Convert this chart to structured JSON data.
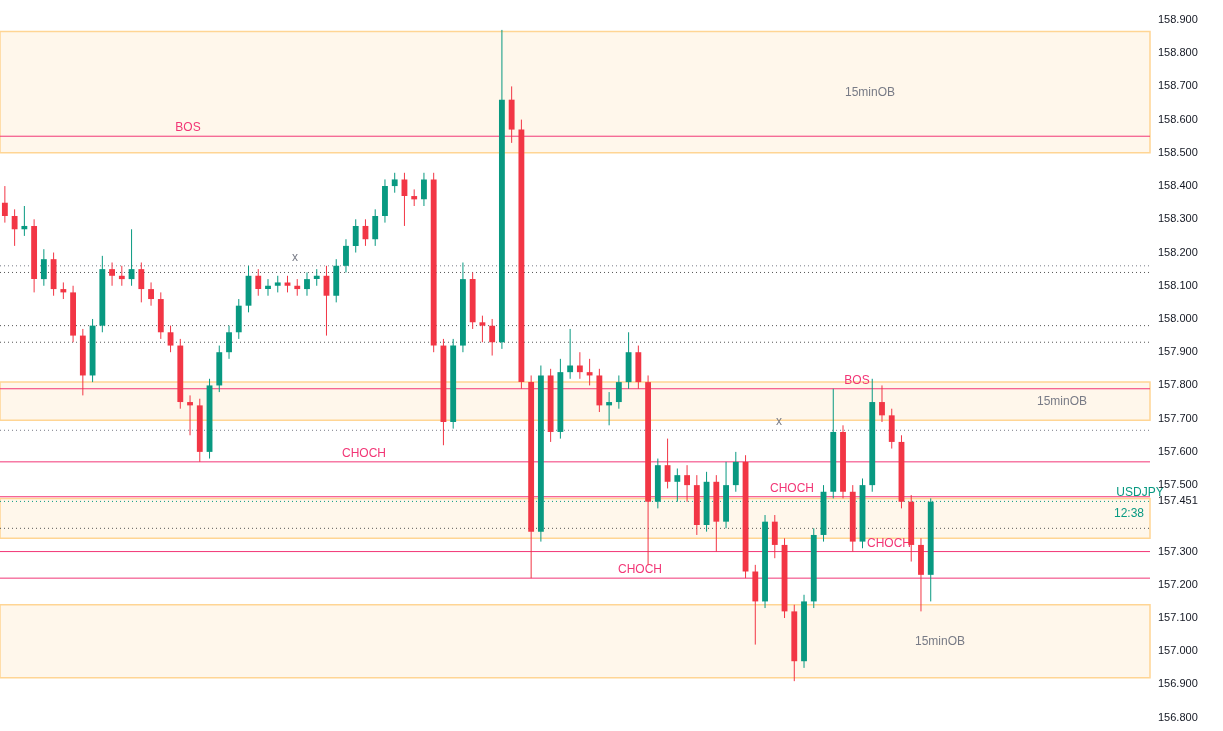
{
  "chart_data": {
    "type": "candlestick",
    "categories": [
      null,
      null,
      null,
      null,
      null,
      null,
      null,
      null,
      null,
      null,
      null,
      null,
      null,
      null,
      null,
      null,
      null,
      null,
      null,
      null,
      null,
      null,
      null,
      null,
      null,
      null,
      null,
      null,
      null,
      null,
      null,
      null,
      null,
      null,
      null,
      null,
      null,
      null,
      null,
      null,
      null,
      null,
      null,
      null,
      null,
      null,
      null,
      null,
      null,
      null,
      null,
      null,
      null,
      null,
      null,
      null,
      null,
      null,
      null,
      null,
      null,
      null,
      null,
      null,
      null,
      null,
      null,
      null,
      null,
      null,
      null,
      null,
      null,
      null,
      null,
      null,
      null,
      null,
      null,
      null,
      null,
      null,
      null,
      null,
      null,
      null,
      null,
      null,
      null,
      null,
      null,
      null,
      null,
      null,
      null,
      null,
      null,
      null,
      null,
      null,
      null,
      null,
      null,
      null,
      null,
      null,
      null,
      null,
      null,
      null,
      null,
      null,
      null,
      null,
      null,
      null,
      null,
      null
    ],
    "ohlc": [
      [
        158.35,
        158.4,
        158.29,
        158.31
      ],
      [
        158.31,
        158.33,
        158.22,
        158.27
      ],
      [
        158.27,
        158.34,
        158.25,
        158.28
      ],
      [
        158.28,
        158.3,
        158.08,
        158.12
      ],
      [
        158.12,
        158.21,
        158.1,
        158.18
      ],
      [
        158.18,
        158.2,
        158.07,
        158.09
      ],
      [
        158.09,
        158.11,
        158.06,
        158.08
      ],
      [
        158.08,
        158.1,
        157.93,
        157.95
      ],
      [
        157.95,
        157.97,
        157.77,
        157.83
      ],
      [
        157.83,
        158.0,
        157.81,
        157.98
      ],
      [
        157.98,
        158.19,
        157.96,
        158.15
      ],
      [
        158.15,
        158.17,
        158.1,
        158.13
      ],
      [
        158.13,
        158.16,
        158.1,
        158.12
      ],
      [
        158.12,
        158.27,
        158.1,
        158.15
      ],
      [
        158.15,
        158.17,
        158.05,
        158.09
      ],
      [
        158.09,
        158.11,
        158.04,
        158.06
      ],
      [
        158.06,
        158.08,
        157.94,
        157.96
      ],
      [
        157.96,
        157.98,
        157.9,
        157.92
      ],
      [
        157.92,
        157.94,
        157.73,
        157.75
      ],
      [
        157.75,
        157.77,
        157.65,
        157.74
      ],
      [
        157.74,
        157.76,
        157.57,
        157.6
      ],
      [
        157.6,
        157.82,
        157.58,
        157.8
      ],
      [
        157.8,
        157.92,
        157.78,
        157.9
      ],
      [
        157.9,
        157.98,
        157.88,
        157.96
      ],
      [
        157.96,
        158.06,
        157.94,
        158.04
      ],
      [
        158.04,
        158.16,
        158.02,
        158.13
      ],
      [
        158.13,
        158.15,
        158.07,
        158.09
      ],
      [
        158.09,
        158.12,
        158.07,
        158.1
      ],
      [
        158.1,
        158.13,
        158.08,
        158.11
      ],
      [
        158.11,
        158.13,
        158.08,
        158.1
      ],
      [
        158.1,
        158.12,
        158.07,
        158.09
      ],
      [
        158.09,
        158.14,
        158.07,
        158.12
      ],
      [
        158.12,
        158.15,
        158.1,
        158.13
      ],
      [
        158.13,
        158.16,
        157.95,
        158.07
      ],
      [
        158.07,
        158.18,
        158.05,
        158.16
      ],
      [
        158.16,
        158.24,
        158.14,
        158.22
      ],
      [
        158.22,
        158.3,
        158.2,
        158.28
      ],
      [
        158.28,
        158.3,
        158.22,
        158.24
      ],
      [
        158.24,
        158.33,
        158.22,
        158.31
      ],
      [
        158.31,
        158.42,
        158.29,
        158.4
      ],
      [
        158.4,
        158.44,
        158.38,
        158.42
      ],
      [
        158.42,
        158.44,
        158.28,
        158.37
      ],
      [
        158.37,
        158.39,
        158.34,
        158.36
      ],
      [
        158.36,
        158.44,
        158.34,
        158.42
      ],
      [
        158.42,
        158.44,
        157.9,
        157.92
      ],
      [
        157.92,
        157.94,
        157.62,
        157.69
      ],
      [
        157.69,
        157.94,
        157.67,
        157.92
      ],
      [
        157.92,
        158.17,
        157.9,
        158.12
      ],
      [
        158.12,
        158.14,
        157.97,
        157.99
      ],
      [
        157.99,
        158.01,
        157.93,
        157.98
      ],
      [
        157.98,
        158.0,
        157.89,
        157.93
      ],
      [
        157.93,
        158.87,
        157.91,
        158.66
      ],
      [
        158.66,
        158.7,
        158.53,
        158.57
      ],
      [
        158.57,
        158.6,
        157.79,
        157.81
      ],
      [
        157.81,
        157.83,
        157.22,
        157.36
      ],
      [
        157.36,
        157.86,
        157.33,
        157.83
      ],
      [
        157.83,
        157.85,
        157.63,
        157.66
      ],
      [
        157.66,
        157.88,
        157.64,
        157.84
      ],
      [
        157.84,
        157.97,
        157.82,
        157.86
      ],
      [
        157.86,
        157.9,
        157.82,
        157.84
      ],
      [
        157.84,
        157.88,
        157.8,
        157.83
      ],
      [
        157.83,
        157.85,
        157.72,
        157.74
      ],
      [
        157.74,
        157.78,
        157.68,
        157.75
      ],
      [
        157.75,
        157.83,
        157.73,
        157.81
      ],
      [
        157.81,
        157.96,
        157.79,
        157.9
      ],
      [
        157.9,
        157.92,
        157.79,
        157.81
      ],
      [
        157.81,
        157.83,
        157.26,
        157.45
      ],
      [
        157.45,
        157.58,
        157.43,
        157.56
      ],
      [
        157.56,
        157.64,
        157.49,
        157.51
      ],
      [
        157.51,
        157.55,
        157.45,
        157.53
      ],
      [
        157.53,
        157.56,
        157.45,
        157.5
      ],
      [
        157.5,
        157.53,
        157.35,
        157.38
      ],
      [
        157.38,
        157.54,
        157.36,
        157.51
      ],
      [
        157.51,
        157.53,
        157.3,
        157.39
      ],
      [
        157.39,
        157.57,
        157.37,
        157.5
      ],
      [
        157.5,
        157.6,
        157.48,
        157.57
      ],
      [
        157.57,
        157.59,
        157.22,
        157.24
      ],
      [
        157.24,
        157.26,
        157.02,
        157.15
      ],
      [
        157.15,
        157.41,
        157.13,
        157.39
      ],
      [
        157.39,
        157.41,
        157.28,
        157.32
      ],
      [
        157.32,
        157.34,
        157.1,
        157.12
      ],
      [
        157.12,
        157.14,
        156.91,
        156.97
      ],
      [
        156.97,
        157.17,
        156.95,
        157.15
      ],
      [
        157.15,
        157.37,
        157.13,
        157.35
      ],
      [
        157.35,
        157.5,
        157.33,
        157.48
      ],
      [
        157.48,
        157.79,
        157.46,
        157.66
      ],
      [
        157.66,
        157.68,
        157.46,
        157.48
      ],
      [
        157.48,
        157.5,
        157.3,
        157.33
      ],
      [
        157.33,
        157.52,
        157.31,
        157.5
      ],
      [
        157.5,
        157.82,
        157.48,
        157.75
      ],
      [
        157.75,
        157.8,
        157.69,
        157.71
      ],
      [
        157.71,
        157.73,
        157.61,
        157.63
      ],
      [
        157.63,
        157.65,
        157.43,
        157.45
      ],
      [
        157.45,
        157.47,
        157.27,
        157.32
      ],
      [
        157.32,
        157.34,
        157.12,
        157.23
      ],
      [
        157.23,
        157.46,
        157.15,
        157.45
      ],
      null,
      null,
      null,
      null,
      null,
      null,
      null,
      null,
      null,
      null,
      null,
      null,
      null,
      null,
      null,
      null,
      null,
      null,
      null,
      null,
      null,
      null
    ],
    "ylim": [
      156.76,
      158.96
    ],
    "yticks": [
      {
        "value": 156.8,
        "label": "156.800"
      },
      {
        "value": 156.9,
        "label": "156.900"
      },
      {
        "value": 157.0,
        "label": "157.000"
      },
      {
        "value": 157.1,
        "label": "157.100"
      },
      {
        "value": 157.2,
        "label": "157.200"
      },
      {
        "value": 157.3,
        "label": "157.300"
      },
      {
        "value": 157.451,
        "label": "157.451"
      },
      {
        "value": 157.5,
        "label": "157.500"
      },
      {
        "value": 157.6,
        "label": "157.600"
      },
      {
        "value": 157.7,
        "label": "157.700"
      },
      {
        "value": 157.8,
        "label": "157.800"
      },
      {
        "value": 157.9,
        "label": "157.900"
      },
      {
        "value": 158.0,
        "label": "158.000"
      },
      {
        "value": 158.1,
        "label": "158.100"
      },
      {
        "value": 158.2,
        "label": "158.200"
      },
      {
        "value": 158.3,
        "label": "158.300"
      },
      {
        "value": 158.4,
        "label": "158.400"
      },
      {
        "value": 158.5,
        "label": "158.500"
      },
      {
        "value": 158.6,
        "label": "158.600"
      },
      {
        "value": 158.7,
        "label": "158.700"
      },
      {
        "value": 158.8,
        "label": "158.800"
      },
      {
        "value": 158.9,
        "label": "158.900"
      }
    ],
    "tick_labels": "y",
    "grid": false,
    "bands": [
      {
        "axis": "y",
        "from": 158.5,
        "to": 158.865,
        "label": "15minOB",
        "color": "#fff7eb"
      },
      {
        "axis": "y",
        "from": 157.695,
        "to": 157.81,
        "label": "15minOB",
        "color": "#fff7eb"
      },
      {
        "axis": "y",
        "from": 156.92,
        "to": 157.14,
        "label": "15minOB",
        "color": "#fff7eb"
      },
      {
        "axis": "y",
        "from": 157.34,
        "to": 157.46,
        "label": null,
        "color": "#fff7eb"
      }
    ],
    "ref_lines": [
      {
        "axis": "y",
        "value": 158.55,
        "label": "BOS",
        "color": "#f23676",
        "line_style": "solid"
      },
      {
        "axis": "y",
        "value": 157.57,
        "label": "CHOCH",
        "color": "#f23676",
        "line_style": "solid"
      },
      {
        "axis": "y",
        "value": 157.22,
        "label": "CHOCH",
        "color": "#f23676",
        "line_style": "solid"
      },
      {
        "axis": "y",
        "value": 157.79,
        "label": "BOS",
        "color": "#f23676",
        "line_style": "solid"
      },
      {
        "axis": "y",
        "value": 157.465,
        "label": "CHOCH",
        "color": "#f23676",
        "line_style": "solid"
      },
      {
        "axis": "y",
        "value": 157.3,
        "label": "CHOCH",
        "color": "#f23676",
        "line_style": "solid"
      },
      {
        "axis": "y",
        "value": 158.16,
        "label": "x",
        "color": "#787b86",
        "line_style": "dotted"
      },
      {
        "axis": "y",
        "value": 157.665,
        "label": "x",
        "color": "#787b86",
        "line_style": "dotted"
      },
      {
        "axis": "y",
        "value": 157.98,
        "label": null,
        "color": "#555555",
        "line_style": "dotted"
      },
      {
        "axis": "y",
        "value": 158.14,
        "label": null,
        "color": "#555555",
        "line_style": "dotted"
      },
      {
        "axis": "y",
        "value": 157.93,
        "label": null,
        "color": "#555555",
        "line_style": "dotted"
      },
      {
        "axis": "y",
        "value": 157.37,
        "label": null,
        "color": "#555555",
        "line_style": "dotted"
      },
      {
        "axis": "y",
        "value": 157.451,
        "label": "USDJPY",
        "color": "#089981",
        "line_style": "dotted"
      }
    ],
    "annotations": [
      "12:38"
    ]
  }
}
